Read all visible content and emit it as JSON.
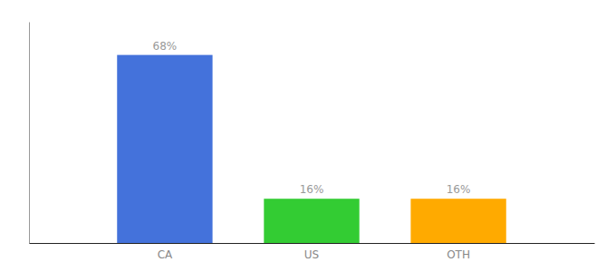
{
  "chart_data": {
    "type": "bar",
    "categories": [
      "CA",
      "US",
      "OTH"
    ],
    "values": [
      68,
      16,
      16
    ],
    "value_labels": [
      "68%",
      "16%",
      "16%"
    ],
    "colors": [
      "#4472db",
      "#33cc33",
      "#ffaa00"
    ],
    "ylim": [
      0,
      80
    ],
    "data_labels": true,
    "tick_labels": "x",
    "grid": false
  }
}
